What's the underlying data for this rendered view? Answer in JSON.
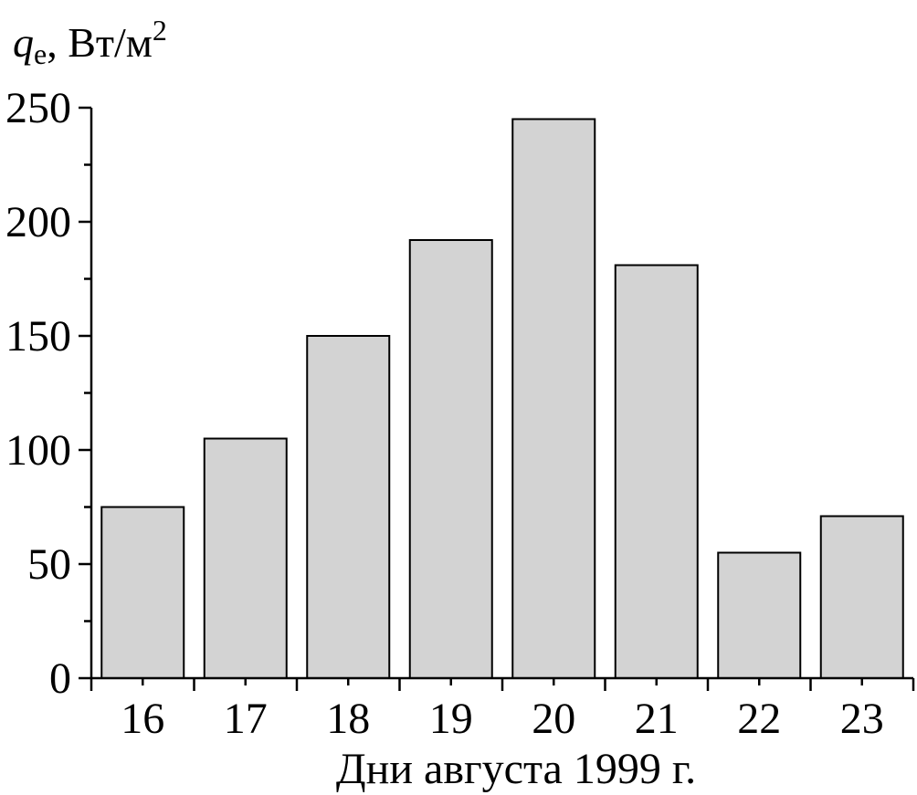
{
  "chart_data": {
    "type": "bar",
    "y_label": [
      "q",
      "e",
      ", Вт/м",
      "2"
    ],
    "x_label": "Дни августа 1999 г.",
    "categories": [
      "16",
      "17",
      "18",
      "19",
      "20",
      "21",
      "22",
      "23"
    ],
    "values": [
      75,
      105,
      150,
      192,
      245,
      181,
      55,
      71
    ],
    "color": "#d3d3d3",
    "ylim": [
      0,
      250
    ],
    "yticks": [
      0,
      50,
      100,
      150,
      200,
      250
    ],
    "yminorticks": [
      25,
      75,
      125,
      175,
      225
    ],
    "grid": false
  }
}
